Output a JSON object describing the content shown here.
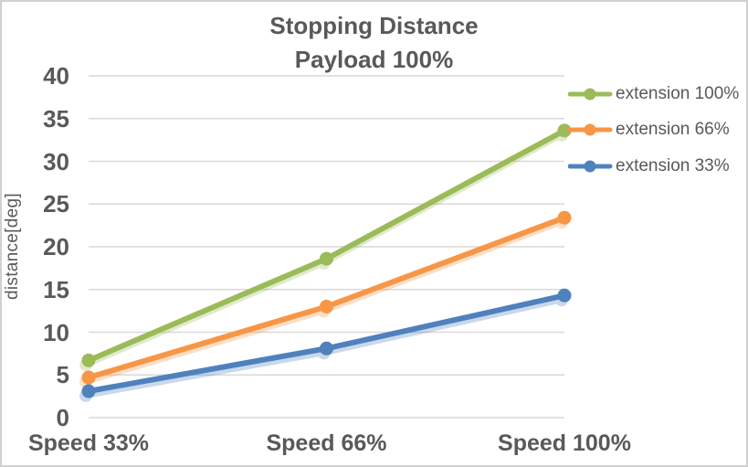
{
  "chart": {
    "title_line1": "Stopping Distance",
    "title_line2": "Payload 100%"
  },
  "chart_data": {
    "type": "line",
    "title": "Stopping Distance",
    "subtitle": "Payload 100%",
    "categories": [
      "Speed 33%",
      "Speed 66%",
      "Speed 100%"
    ],
    "series": [
      {
        "name": "extension 100%",
        "color": "#9BBB59",
        "values": [
          6.7,
          18.6,
          33.6
        ]
      },
      {
        "name": "extension 66%",
        "color": "#F79646",
        "values": [
          4.7,
          13.0,
          23.4
        ]
      },
      {
        "name": "extension 33%",
        "color": "#4F81BD",
        "values": [
          3.1,
          8.1,
          14.3
        ]
      }
    ],
    "xlabel": "",
    "ylabel": "distance[deg]",
    "ylim": [
      0,
      40
    ],
    "yticks": [
      0,
      5,
      10,
      15,
      20,
      25,
      30,
      35,
      40
    ],
    "grid": true,
    "legend_position": "right",
    "marker": "circle"
  },
  "colors": {
    "text": "#595959",
    "gridline": "#D9D9D9",
    "chart_border": "#D1D1D1",
    "background": "#FFFFFF"
  }
}
